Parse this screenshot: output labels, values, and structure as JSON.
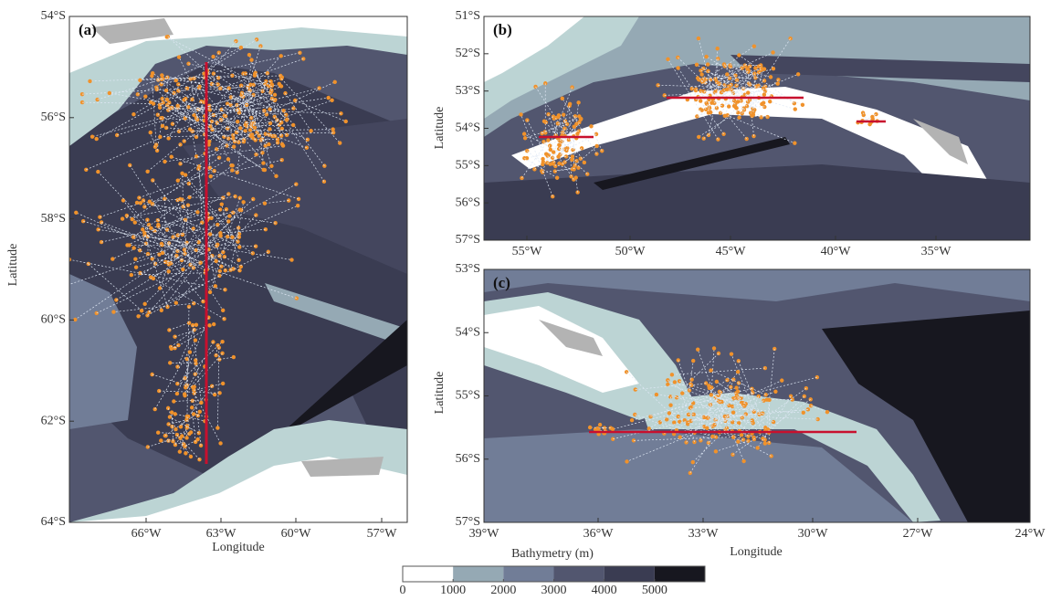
{
  "panels": [
    {
      "label": "(a)",
      "xlabel": "Longitude",
      "ylabel": "Latitude",
      "yticks": [
        "54°S",
        "56°S",
        "58°S",
        "60°S",
        "62°S",
        "64°S"
      ],
      "xticks": [
        "66°W",
        "63°W",
        "60°W",
        "57°W"
      ]
    },
    {
      "label": "(b)",
      "ylabel": "Latitude",
      "yticks": [
        "51°S",
        "52°S",
        "53°S",
        "54°S",
        "55°S",
        "56°S",
        "57°S"
      ],
      "xticks": [
        "55°W",
        "50°W",
        "45°W",
        "40°W",
        "35°W"
      ]
    },
    {
      "label": "(c)",
      "xlabel": "Longitude",
      "ylabel": "Latitude",
      "yticks": [
        "53°S",
        "54°S",
        "55°S",
        "56°S",
        "57°S"
      ],
      "xticks": [
        "39°W",
        "36°W",
        "33°W",
        "30°W",
        "27°W",
        "24°W"
      ]
    }
  ],
  "colorbar": {
    "title": "Bathymetry (m)",
    "lim": [
      0,
      6000
    ],
    "ticks": [
      0,
      1000,
      2000,
      3000,
      4000,
      5000
    ],
    "colors": [
      "#ffffff",
      "#bcd4d4",
      "#95a9b4",
      "#717d97",
      "#52566f",
      "#3a3c52",
      "#17171f"
    ]
  }
}
